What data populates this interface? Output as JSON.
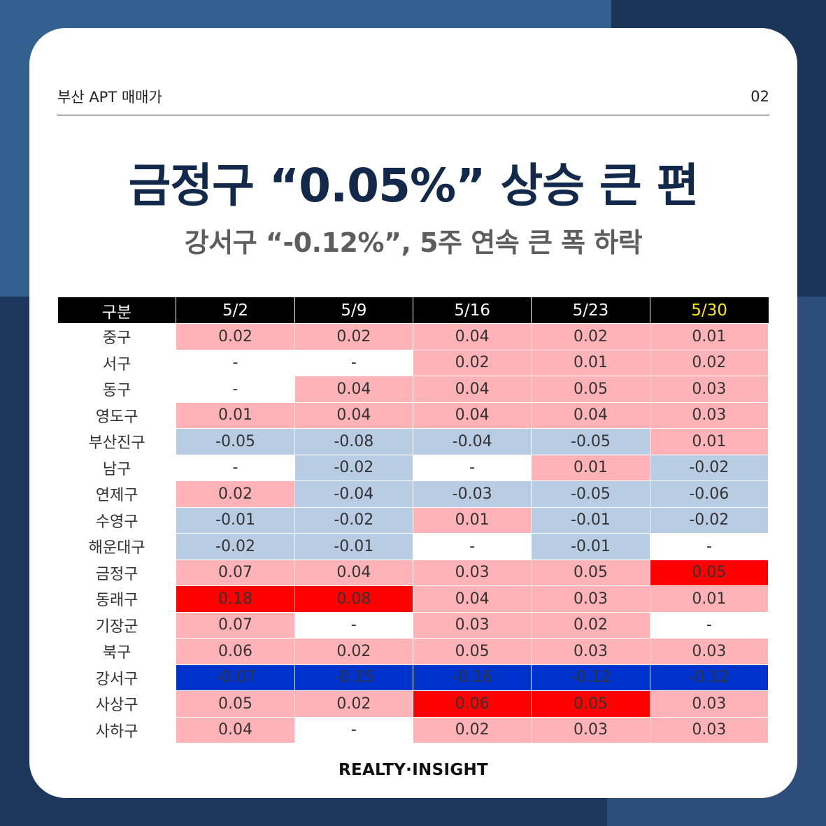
{
  "header": {
    "section": "부산 APT 매매가",
    "page_number": "02"
  },
  "title": "금정구 “0.05%” 상승 큰 편",
  "subtitle": "강서구 “-0.12%”, 5주 연속 큰 폭 하락",
  "table": {
    "columns": [
      "구분",
      "5/2",
      "5/9",
      "5/16",
      "5/23",
      "5/30"
    ],
    "highlight_column": "5/30",
    "rows": [
      {
        "district": "중구",
        "values": [
          "0.02",
          "0.02",
          "0.04",
          "0.02",
          "0.01"
        ]
      },
      {
        "district": "서구",
        "values": [
          "-",
          "-",
          "0.02",
          "0.01",
          "0.02"
        ]
      },
      {
        "district": "동구",
        "values": [
          "-",
          "0.04",
          "0.04",
          "0.05",
          "0.03"
        ]
      },
      {
        "district": "영도구",
        "values": [
          "0.01",
          "0.04",
          "0.04",
          "0.04",
          "0.03"
        ]
      },
      {
        "district": "부산진구",
        "values": [
          "-0.05",
          "-0.08",
          "-0.04",
          "-0.05",
          "0.01"
        ]
      },
      {
        "district": "남구",
        "values": [
          "-",
          "-0.02",
          "-",
          "0.01",
          "-0.02"
        ]
      },
      {
        "district": "연제구",
        "values": [
          "0.02",
          "-0.04",
          "-0.03",
          "-0.05",
          "-0.06"
        ]
      },
      {
        "district": "수영구",
        "values": [
          "-0.01",
          "-0.02",
          "0.01",
          "-0.01",
          "-0.02"
        ]
      },
      {
        "district": "해운대구",
        "values": [
          "-0.02",
          "-0.01",
          "-",
          "-0.01",
          "-"
        ]
      },
      {
        "district": "금정구",
        "values": [
          "0.07",
          "0.04",
          "0.03",
          "0.05",
          "0.05"
        ]
      },
      {
        "district": "동래구",
        "values": [
          "0.18",
          "0.08",
          "0.04",
          "0.03",
          "0.01"
        ]
      },
      {
        "district": "기장군",
        "values": [
          "0.07",
          "-",
          "0.03",
          "0.02",
          "-"
        ]
      },
      {
        "district": "북구",
        "values": [
          "0.06",
          "0.02",
          "0.05",
          "0.03",
          "0.03"
        ]
      },
      {
        "district": "강서구",
        "values": [
          "-0.07",
          "-0.15",
          "-0.16",
          "-0.12",
          "-0.12"
        ]
      },
      {
        "district": "사상구",
        "values": [
          "0.05",
          "0.02",
          "0.06",
          "0.05",
          "0.03"
        ]
      },
      {
        "district": "사하구",
        "values": [
          "0.04",
          "-",
          "0.02",
          "0.03",
          "0.03"
        ]
      }
    ],
    "emphasis": [
      {
        "row": 9,
        "col": 4,
        "kind": "strong-pos"
      },
      {
        "row": 10,
        "col": 0,
        "kind": "strong-pos"
      },
      {
        "row": 10,
        "col": 1,
        "kind": "strong-pos"
      },
      {
        "row": 13,
        "col": 0,
        "kind": "strong-neg"
      },
      {
        "row": 13,
        "col": 1,
        "kind": "strong-neg"
      },
      {
        "row": 13,
        "col": 2,
        "kind": "strong-neg"
      },
      {
        "row": 13,
        "col": 3,
        "kind": "strong-neg"
      },
      {
        "row": 13,
        "col": 4,
        "kind": "strong-neg"
      },
      {
        "row": 14,
        "col": 2,
        "kind": "strong-pos"
      },
      {
        "row": 14,
        "col": 3,
        "kind": "strong-pos"
      }
    ]
  },
  "footer": {
    "brand": "REALTY·INSIGHT"
  },
  "colors": {
    "positive": "#ffb3b7",
    "negative": "#b8cce4",
    "strong_positive": "#ff0000",
    "strong_negative": "#0033cc",
    "title": "#13294b",
    "highlight_header": "#ffe600"
  }
}
